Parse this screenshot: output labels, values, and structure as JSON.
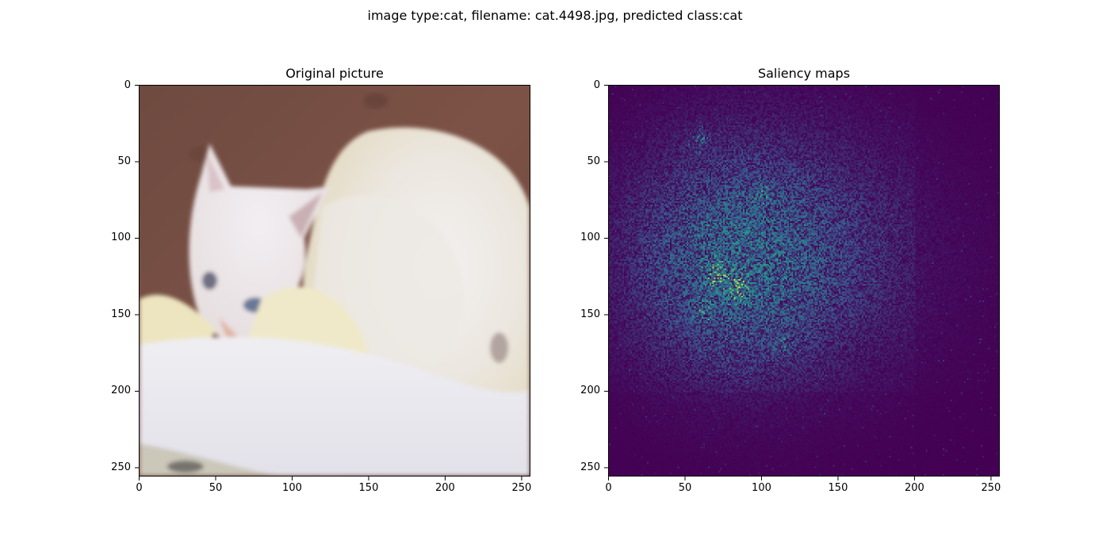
{
  "figure": {
    "suptitle": "image type:cat, filename: cat.4498.jpg, predicted class:cat"
  },
  "chart_data": [
    {
      "type": "image",
      "title": "Original picture",
      "xlabel": "",
      "ylabel": "",
      "xlim": [
        0,
        256
      ],
      "ylim": [
        256,
        0
      ],
      "xticks": [
        0,
        50,
        100,
        150,
        200,
        250
      ],
      "yticks": [
        0,
        50,
        100,
        150,
        200,
        250
      ],
      "xtick_labels": [
        "0",
        "50",
        "100",
        "150",
        "200",
        "250"
      ],
      "ytick_labels": [
        "0",
        "50",
        "100",
        "150",
        "200",
        "250"
      ],
      "content": "photo of a white cat curled on a white fleece blanket against a brown wooden background"
    },
    {
      "type": "heatmap",
      "title": "Saliency maps",
      "xlabel": "",
      "ylabel": "",
      "xlim": [
        0,
        256
      ],
      "ylim": [
        256,
        0
      ],
      "xticks": [
        0,
        50,
        100,
        150,
        200,
        250
      ],
      "yticks": [
        0,
        50,
        100,
        150,
        200,
        250
      ],
      "xtick_labels": [
        "0",
        "50",
        "100",
        "150",
        "200",
        "250"
      ],
      "ytick_labels": [
        "0",
        "50",
        "100",
        "150",
        "200",
        "250"
      ],
      "colormap": "viridis",
      "hotspots": [
        {
          "x": 70,
          "y": 125,
          "intensity": 1.0
        },
        {
          "x": 84,
          "y": 133,
          "intensity": 1.0
        },
        {
          "x": 62,
          "y": 148,
          "intensity": 0.8
        },
        {
          "x": 60,
          "y": 35,
          "intensity": 0.55
        },
        {
          "x": 100,
          "y": 70,
          "intensity": 0.5
        },
        {
          "x": 115,
          "y": 170,
          "intensity": 0.45
        }
      ]
    }
  ],
  "colors": {
    "viridis_low": "#440154",
    "viridis_midlow": "#3b528b",
    "viridis_mid": "#21918c",
    "viridis_midhigh": "#5ec962",
    "viridis_high": "#fde725",
    "wood": "#7a4f43",
    "fur": "#f1ece6",
    "blanket": "#e8e6ec"
  }
}
